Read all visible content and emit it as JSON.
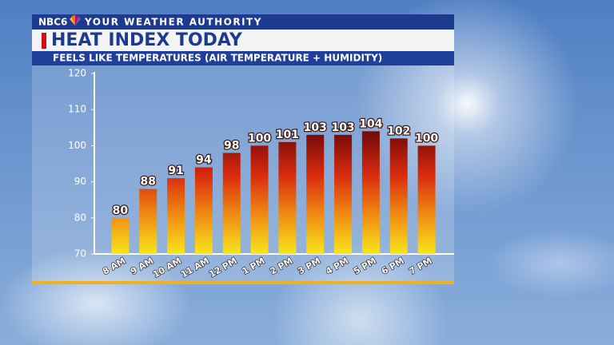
{
  "chart_data": {
    "type": "bar",
    "brand": "NBC6",
    "tagline": "YOUR WEATHER AUTHORITY",
    "title": "HEAT INDEX TODAY",
    "subtitle": "FEELS LIKE TEMPERATURES (AIR TEMPERATURE + HUMIDITY)",
    "categories": [
      "8 AM",
      "9 AM",
      "10 AM",
      "11 AM",
      "12 PM",
      "1 PM",
      "2 PM",
      "3 PM",
      "4 PM",
      "5 PM",
      "6 PM",
      "7 PM"
    ],
    "values": [
      80,
      88,
      91,
      94,
      98,
      100,
      101,
      103,
      103,
      104,
      102,
      100
    ],
    "gradient_colors": [
      "#f6e61c",
      "#f08a12",
      "#d92a0e",
      "#7a0c0a",
      "#4a0808"
    ],
    "ylim": [
      70,
      120
    ],
    "yticks": [
      70,
      80,
      90,
      100,
      110,
      120
    ],
    "grid": false
  }
}
